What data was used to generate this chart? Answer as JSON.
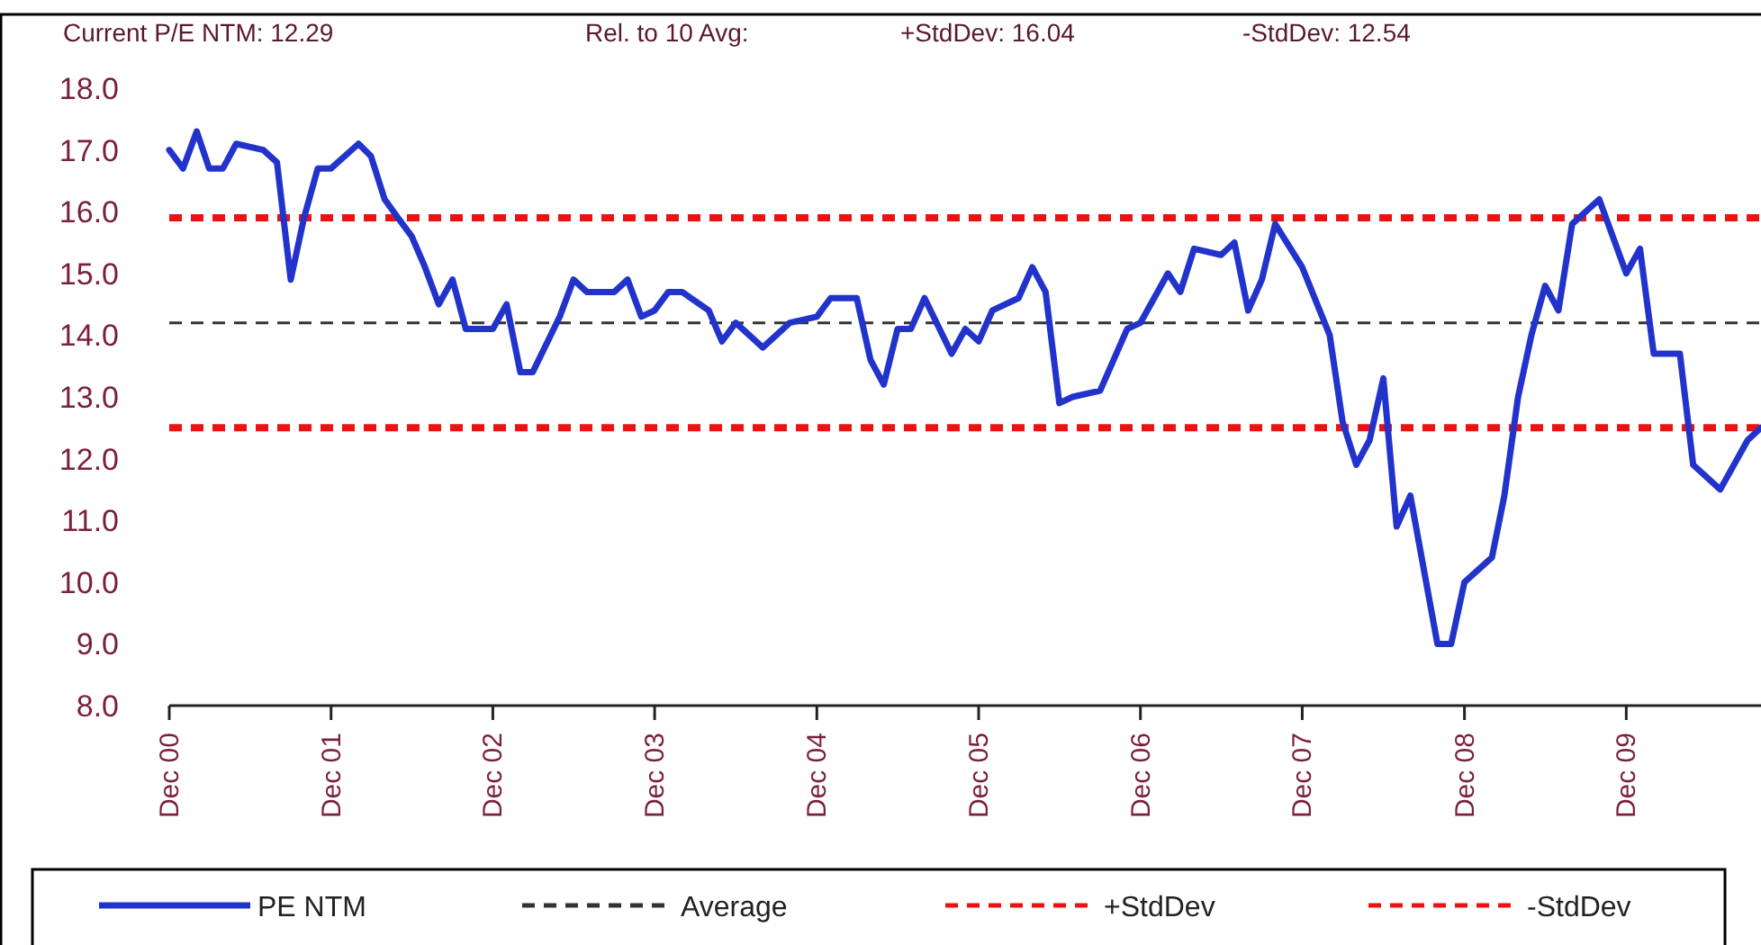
{
  "chart_data": {
    "type": "line",
    "annotations": [
      "Current P/E NTM: 12.29",
      "Rel. to 10 Avg:",
      "+StdDev: 16.04",
      "-StdDev: 12.54"
    ],
    "x": [
      "2000-12",
      "2001-01",
      "2001-02",
      "2001-03",
      "2001-04",
      "2001-05",
      "2001-07",
      "2001-08",
      "2001-09",
      "2001-10",
      "2001-11",
      "2001-12",
      "2002-02",
      "2002-03",
      "2002-04",
      "2002-05",
      "2002-06",
      "2002-07",
      "2002-08",
      "2002-09",
      "2002-10",
      "2002-12",
      "2003-01",
      "2003-02",
      "2003-03",
      "2003-05",
      "2003-06",
      "2003-07",
      "2003-09",
      "2003-10",
      "2003-11",
      "2003-12",
      "2004-01",
      "2004-02",
      "2004-04",
      "2004-05",
      "2004-06",
      "2004-08",
      "2004-10",
      "2004-12",
      "2005-01",
      "2005-03",
      "2005-04",
      "2005-05",
      "2005-06",
      "2005-07",
      "2005-08",
      "2005-10",
      "2005-11",
      "2005-12",
      "2006-01",
      "2006-03",
      "2006-04",
      "2006-05",
      "2006-06",
      "2006-07",
      "2006-09",
      "2006-11",
      "2006-12",
      "2007-02",
      "2007-03",
      "2007-04",
      "2007-06",
      "2007-07",
      "2007-08",
      "2007-09",
      "2007-10",
      "2007-12",
      "2008-02",
      "2008-03",
      "2008-04",
      "2008-05",
      "2008-06",
      "2008-07",
      "2008-08",
      "2008-10",
      "2008-11",
      "2008-12",
      "2009-02",
      "2009-03",
      "2009-04",
      "2009-05",
      "2009-06",
      "2009-07",
      "2009-08",
      "2009-10",
      "2009-12",
      "2010-01",
      "2010-02",
      "2010-04",
      "2010-05",
      "2010-07",
      "2010-09",
      "2010-10"
    ],
    "series": [
      {
        "name": "PE NTM",
        "color": "#2233cc",
        "values": [
          17.0,
          16.7,
          17.3,
          16.7,
          16.7,
          17.1,
          17.0,
          16.8,
          14.9,
          15.9,
          16.7,
          16.7,
          17.1,
          16.9,
          16.2,
          15.9,
          15.6,
          15.1,
          14.5,
          14.9,
          14.1,
          14.1,
          14.5,
          13.4,
          13.4,
          14.3,
          14.9,
          14.7,
          14.7,
          14.9,
          14.3,
          14.4,
          14.7,
          14.7,
          14.4,
          13.9,
          14.2,
          13.8,
          14.2,
          14.3,
          14.6,
          14.6,
          13.6,
          13.2,
          14.1,
          14.1,
          14.6,
          13.7,
          14.1,
          13.9,
          14.4,
          14.6,
          15.1,
          14.7,
          12.9,
          13.0,
          13.1,
          14.1,
          14.2,
          15.0,
          14.7,
          15.4,
          15.3,
          15.5,
          14.4,
          14.9,
          15.8,
          15.1,
          14.0,
          12.6,
          11.9,
          12.3,
          13.3,
          10.9,
          11.4,
          9.0,
          9.0,
          10.0,
          10.4,
          11.4,
          13.0,
          14.0,
          14.8,
          14.4,
          15.8,
          16.2,
          15.0,
          15.4,
          13.7,
          13.7,
          11.9,
          11.5,
          12.3,
          12.5
        ]
      }
    ],
    "ref_lines": [
      {
        "axis": "y",
        "value": 14.2,
        "label": "Average",
        "color": "#333333",
        "line_style": "dashed"
      },
      {
        "axis": "y",
        "value": 15.9,
        "label": "+StdDev",
        "color": "#ee1111",
        "line_style": "dashed"
      },
      {
        "axis": "y",
        "value": 12.5,
        "label": "-StdDev",
        "color": "#ee1111",
        "line_style": "dashed"
      }
    ],
    "xlim": [
      "2000-12",
      "2010-10"
    ],
    "xticks": [
      {
        "value": "2000-12",
        "label": "Dec 00"
      },
      {
        "value": "2001-12",
        "label": "Dec 01"
      },
      {
        "value": "2002-12",
        "label": "Dec 02"
      },
      {
        "value": "2003-12",
        "label": "Dec 03"
      },
      {
        "value": "2004-12",
        "label": "Dec 04"
      },
      {
        "value": "2005-12",
        "label": "Dec 05"
      },
      {
        "value": "2006-12",
        "label": "Dec 06"
      },
      {
        "value": "2007-12",
        "label": "Dec 07"
      },
      {
        "value": "2008-12",
        "label": "Dec 08"
      },
      {
        "value": "2009-12",
        "label": "Dec 09"
      }
    ],
    "ylim": [
      8,
      18
    ],
    "yticks": [
      {
        "value": 8,
        "label": "8.0"
      },
      {
        "value": 9,
        "label": "9.0"
      },
      {
        "value": 10,
        "label": "10.0"
      },
      {
        "value": 11,
        "label": "11.0"
      },
      {
        "value": 12,
        "label": "12.0"
      },
      {
        "value": 13,
        "label": "13.0"
      },
      {
        "value": 14,
        "label": "14.0"
      },
      {
        "value": 15,
        "label": "15.0"
      },
      {
        "value": 16,
        "label": "16.0"
      },
      {
        "value": 17,
        "label": "17.0"
      },
      {
        "value": 18,
        "label": "18.0"
      }
    ],
    "legend": "bottom",
    "line_style": "solid"
  }
}
